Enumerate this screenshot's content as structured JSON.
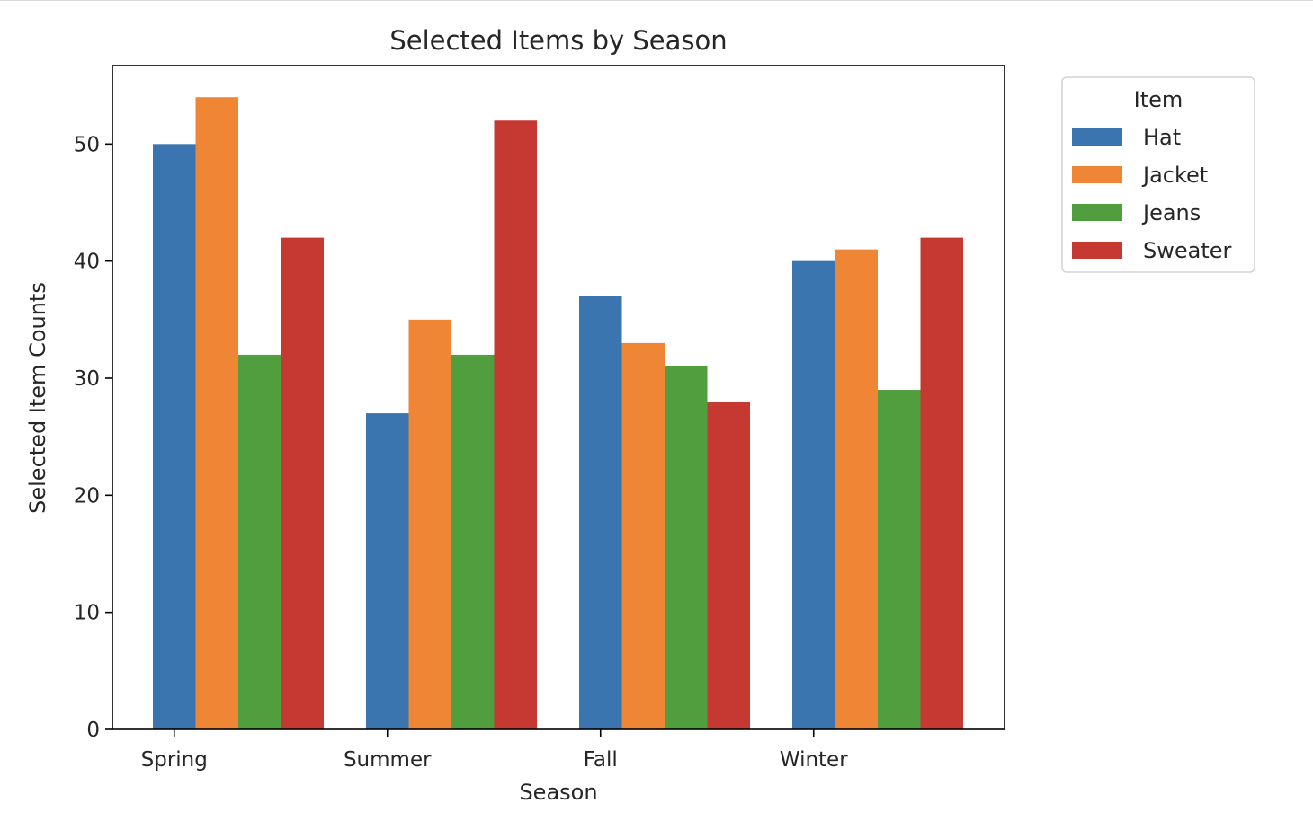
{
  "chart_data": {
    "type": "bar",
    "title": "Selected Items by Season",
    "xlabel": "Season",
    "ylabel": "Selected Item Counts",
    "categories": [
      "Spring",
      "Summer",
      "Fall",
      "Winter"
    ],
    "ylim": [
      0,
      56.7
    ],
    "yticks": [
      0,
      10,
      20,
      30,
      40,
      50
    ],
    "grid": false,
    "legend": {
      "title": "Item",
      "placement": "outside-top-right"
    },
    "series": [
      {
        "name": "Hat",
        "color": "#3a75af",
        "values": [
          50,
          27,
          37,
          40
        ]
      },
      {
        "name": "Jacket",
        "color": "#ef8636",
        "values": [
          54,
          35,
          33,
          41
        ]
      },
      {
        "name": "Jeans",
        "color": "#519e3e",
        "values": [
          32,
          32,
          31,
          29
        ]
      },
      {
        "name": "Sweater",
        "color": "#c53932",
        "values": [
          42,
          52,
          28,
          42
        ]
      }
    ]
  }
}
